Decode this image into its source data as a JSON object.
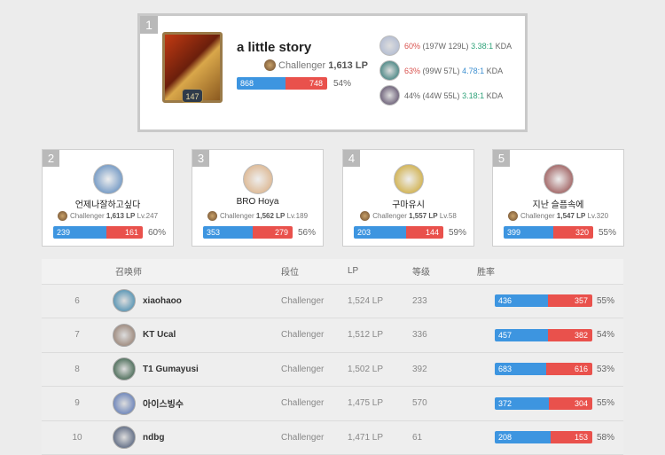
{
  "top": {
    "rank": "1",
    "name": "a little story",
    "level": "147",
    "tier": "Challenger",
    "lp": "1,613 LP",
    "wins": "868",
    "losses": "748",
    "winrate": "54%",
    "champions": [
      {
        "winrate": "60%",
        "record": "(197W 129L)",
        "kda": "3.38:1",
        "kda_label": "KDA",
        "winrate_color": "#d9534f",
        "kda_color": "#2fa37a",
        "avatar_color": "#a8b4d0"
      },
      {
        "winrate": "63%",
        "record": "(99W 57L)",
        "kda": "4.78:1",
        "kda_label": "KDA",
        "winrate_color": "#d9534f",
        "kda_color": "#3d8fd0",
        "avatar_color": "#1f6d6a"
      },
      {
        "winrate": "44%",
        "record": "(44W 55L)",
        "kda": "3.18:1",
        "kda_label": "KDA",
        "winrate_color": "#666666",
        "kda_color": "#2fa37a",
        "avatar_color": "#4a3a5a"
      }
    ]
  },
  "cards": [
    {
      "rank": "2",
      "name": "언제나잘하고싶다",
      "tier": "Challenger",
      "lp": "1,613 LP",
      "level": "Lv.247",
      "wins": "239",
      "losses": "161",
      "winrate": "60%",
      "avatar_color": "#4d7fb8"
    },
    {
      "rank": "3",
      "name": "BRO Hoya",
      "tier": "Challenger",
      "lp": "1,562 LP",
      "level": "Lv.189",
      "wins": "353",
      "losses": "279",
      "winrate": "56%",
      "avatar_color": "#d8a878"
    },
    {
      "rank": "4",
      "name": "구마유시",
      "tier": "Challenger",
      "lp": "1,557 LP",
      "level": "Lv.58",
      "wins": "203",
      "losses": "144",
      "winrate": "59%",
      "avatar_color": "#c9a020"
    },
    {
      "rank": "5",
      "name": "지난 슬픔속에",
      "tier": "Challenger",
      "lp": "1,547 LP",
      "level": "Lv.320",
      "wins": "399",
      "losses": "320",
      "winrate": "55%",
      "avatar_color": "#8a3a3a"
    }
  ],
  "table": {
    "headers": [
      "",
      "召唤师",
      "段位",
      "LP",
      "等级",
      "胜率"
    ],
    "rows": [
      {
        "rank": "6",
        "name": "xiaohaoo",
        "tier": "Challenger",
        "lp": "1,524 LP",
        "level": "233",
        "wins": "436",
        "losses": "357",
        "winrate": "55%",
        "avatar_color": "#2f7fa8"
      },
      {
        "rank": "7",
        "name": "KT Ucal",
        "tier": "Challenger",
        "lp": "1,512 LP",
        "level": "336",
        "wins": "457",
        "losses": "382",
        "winrate": "54%",
        "avatar_color": "#8a7060"
      },
      {
        "rank": "8",
        "name": "T1 Gumayusi",
        "tier": "Challenger",
        "lp": "1,502 LP",
        "level": "392",
        "wins": "683",
        "losses": "616",
        "winrate": "53%",
        "avatar_color": "#1f4a30"
      },
      {
        "rank": "9",
        "name": "아이스빙수",
        "tier": "Challenger",
        "lp": "1,475 LP",
        "level": "570",
        "wins": "372",
        "losses": "304",
        "winrate": "55%",
        "avatar_color": "#4a6ab0"
      },
      {
        "rank": "10",
        "name": "ndbg",
        "tier": "Challenger",
        "lp": "1,471 LP",
        "level": "61",
        "wins": "208",
        "losses": "153",
        "winrate": "58%",
        "avatar_color": "#3a4a6a"
      }
    ]
  }
}
